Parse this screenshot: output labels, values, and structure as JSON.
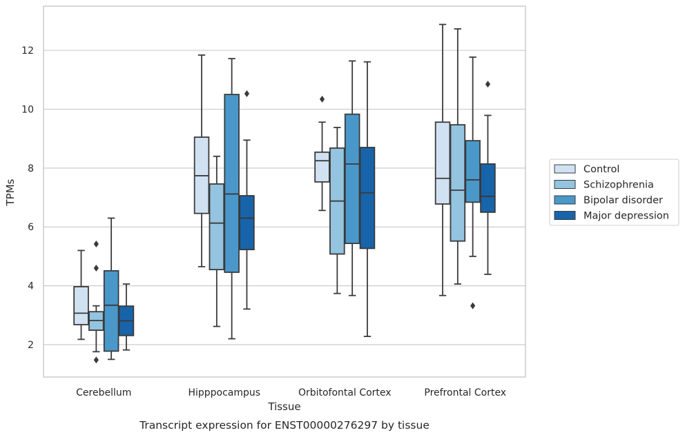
{
  "chart_data": {
    "type": "box",
    "title": "",
    "caption": "Transcript expression for ENST00000276297 by tissue",
    "xlabel": "Tissue",
    "ylabel": "TPMs",
    "ylim": [
      0.9,
      13.5
    ],
    "yticks": [
      2,
      4,
      6,
      8,
      10,
      12
    ],
    "grid": "horizontal",
    "legend_position": "right",
    "categories": [
      "Cerebellum",
      "Hipppocampus",
      "Orbitofontal Cortex",
      "Prefrontal Cortex"
    ],
    "series": [
      {
        "name": "Control",
        "color": "#d0e1f2",
        "boxes": [
          {
            "whisker_low": 2.18,
            "q1": 2.68,
            "median": 3.07,
            "q3": 3.97,
            "whisker_high": 5.2,
            "outliers": []
          },
          {
            "whisker_low": 4.65,
            "q1": 6.46,
            "median": 7.74,
            "q3": 9.05,
            "whisker_high": 11.84,
            "outliers": []
          },
          {
            "whisker_low": 6.56,
            "q1": 7.53,
            "median": 8.25,
            "q3": 8.54,
            "whisker_high": 9.56,
            "outliers": [
              10.34
            ]
          },
          {
            "whisker_low": 3.67,
            "q1": 6.78,
            "median": 7.65,
            "q3": 9.56,
            "whisker_high": 12.88,
            "outliers": []
          }
        ]
      },
      {
        "name": "Schizophrenia",
        "color": "#94c4df",
        "boxes": [
          {
            "whisker_low": 1.76,
            "q1": 2.49,
            "median": 2.82,
            "q3": 3.12,
            "whisker_high": 3.32,
            "outliers": [
              5.42,
              4.6,
              1.48
            ]
          },
          {
            "whisker_low": 2.62,
            "q1": 4.55,
            "median": 6.13,
            "q3": 7.46,
            "whisker_high": 8.4,
            "outliers": []
          },
          {
            "whisker_low": 3.74,
            "q1": 5.08,
            "median": 6.88,
            "q3": 8.68,
            "whisker_high": 9.38,
            "outliers": []
          },
          {
            "whisker_low": 4.06,
            "q1": 5.52,
            "median": 7.25,
            "q3": 9.47,
            "whisker_high": 12.73,
            "outliers": []
          }
        ]
      },
      {
        "name": "Bipolar disorder",
        "color": "#4a98c9",
        "boxes": [
          {
            "whisker_low": 1.5,
            "q1": 1.78,
            "median": 3.34,
            "q3": 4.51,
            "whisker_high": 6.3,
            "outliers": []
          },
          {
            "whisker_low": 2.2,
            "q1": 4.46,
            "median": 7.12,
            "q3": 10.5,
            "whisker_high": 11.72,
            "outliers": []
          },
          {
            "whisker_low": 3.67,
            "q1": 5.44,
            "median": 8.14,
            "q3": 9.83,
            "whisker_high": 11.64,
            "outliers": []
          },
          {
            "whisker_low": 5.0,
            "q1": 6.84,
            "median": 7.6,
            "q3": 8.93,
            "whisker_high": 11.77,
            "outliers": [
              3.32
            ]
          }
        ]
      },
      {
        "name": "Major depression",
        "color": "#1764ab",
        "boxes": [
          {
            "whisker_low": 1.82,
            "q1": 2.31,
            "median": 2.81,
            "q3": 3.31,
            "whisker_high": 4.06,
            "outliers": []
          },
          {
            "whisker_low": 3.21,
            "q1": 5.23,
            "median": 6.3,
            "q3": 7.06,
            "whisker_high": 8.95,
            "outliers": [
              10.53
            ]
          },
          {
            "whisker_low": 2.28,
            "q1": 5.27,
            "median": 7.16,
            "q3": 8.7,
            "whisker_high": 11.61,
            "outliers": []
          },
          {
            "whisker_low": 4.39,
            "q1": 6.5,
            "median": 7.04,
            "q3": 8.14,
            "whisker_high": 9.79,
            "outliers": [
              10.85
            ]
          }
        ]
      }
    ]
  }
}
